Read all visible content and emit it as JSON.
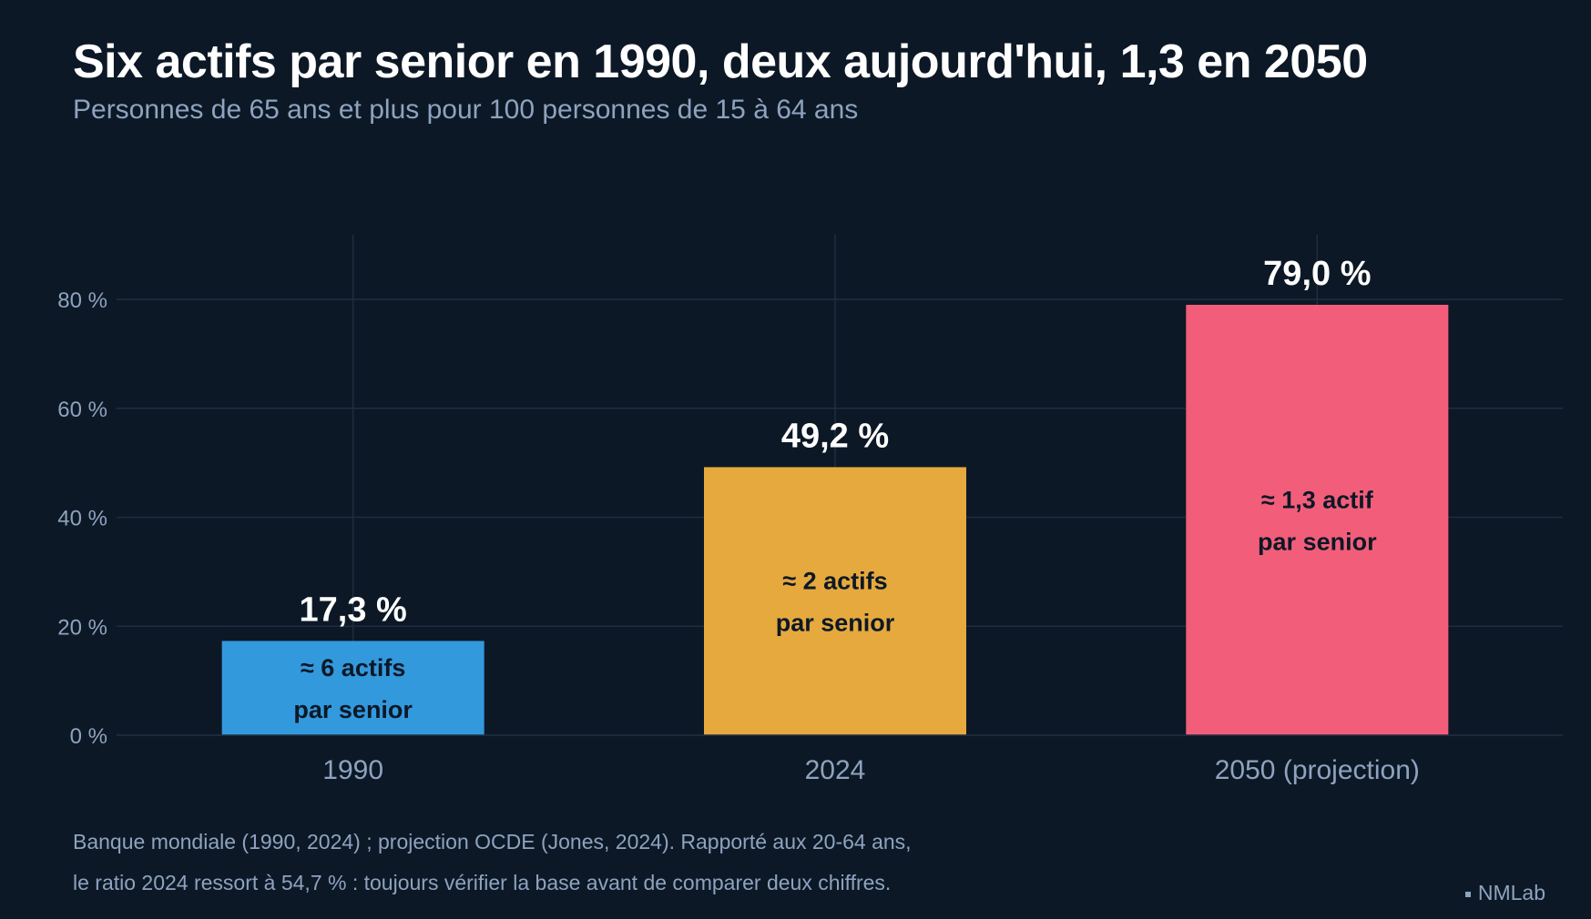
{
  "header": {
    "title": "Six actifs par senior en 1990, deux aujourd'hui, 1,3 en 2050",
    "subtitle": "Personnes de 65 ans et plus pour 100 personnes de 15 à 64 ans"
  },
  "footer": {
    "note_line1": "Banque mondiale (1990, 2024) ; projection OCDE (Jones, 2024). Rapporté aux 20-64 ans,",
    "note_line2": "le ratio 2024 ressort à 54,7 % : toujours vérifier la base avant de comparer deux chiffres.",
    "brand": "NMLab"
  },
  "colors": {
    "background": "#0d1826",
    "grid": "#1f2d40",
    "text_muted": "#8ea3bf",
    "value_label": "#ffffff",
    "inner_label": "#0d1826"
  },
  "chart_data": {
    "type": "bar",
    "title": "Six actifs par senior en 1990, deux aujourd'hui, 1,3 en 2050",
    "subtitle": "Personnes de 65 ans et plus pour 100 personnes de 15 à 64 ans",
    "categories": [
      "1990",
      "2024",
      "2050 (projection)"
    ],
    "values": [
      17.3,
      49.2,
      79.0
    ],
    "value_labels": [
      "17,3 %",
      "49,2 %",
      "79,0 %"
    ],
    "inner_labels": [
      [
        "≈ 6 actifs",
        "par senior"
      ],
      [
        "≈ 2 actifs",
        "par senior"
      ],
      [
        "≈ 1,3 actif",
        "par senior"
      ]
    ],
    "bar_colors": [
      "#3399dd",
      "#e5a93d",
      "#f25e7a"
    ],
    "ylim": [
      0,
      80
    ],
    "yticks": [
      0,
      20,
      40,
      60,
      80
    ],
    "ytick_labels": [
      "0 %",
      "20 %",
      "40 %",
      "60 %",
      "80 %"
    ],
    "xlabel": "",
    "ylabel": "",
    "grid": true
  }
}
